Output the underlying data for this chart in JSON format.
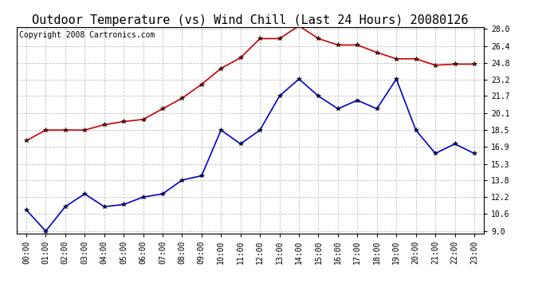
{
  "title": "Outdoor Temperature (vs) Wind Chill (Last 24 Hours) 20080126",
  "copyright_text": "Copyright 2008 Cartronics.com",
  "hours": [
    "00:00",
    "01:00",
    "02:00",
    "03:00",
    "04:00",
    "05:00",
    "06:00",
    "07:00",
    "08:00",
    "09:00",
    "10:00",
    "11:00",
    "12:00",
    "13:00",
    "14:00",
    "15:00",
    "16:00",
    "17:00",
    "18:00",
    "19:00",
    "20:00",
    "21:00",
    "22:00",
    "23:00"
  ],
  "temp_red": [
    17.5,
    18.5,
    18.5,
    18.5,
    19.0,
    19.3,
    19.5,
    20.5,
    21.5,
    22.8,
    24.3,
    25.3,
    27.1,
    27.1,
    28.3,
    27.1,
    26.5,
    26.5,
    25.8,
    25.2,
    25.2,
    24.6,
    24.7,
    24.7
  ],
  "wind_chill_blue": [
    11.0,
    9.0,
    11.3,
    12.5,
    11.3,
    11.5,
    12.2,
    12.5,
    13.8,
    14.2,
    18.5,
    17.2,
    18.5,
    21.7,
    23.3,
    21.7,
    20.5,
    21.3,
    20.5,
    23.3,
    18.5,
    16.3,
    17.2,
    16.3
  ],
  "ylim_min": 9.0,
  "ylim_max": 28.0,
  "yticks": [
    9.0,
    10.6,
    12.2,
    13.8,
    15.3,
    16.9,
    18.5,
    20.1,
    21.7,
    23.2,
    24.8,
    26.4,
    28.0
  ],
  "red_color": "#cc0000",
  "blue_color": "#0000cc",
  "grid_color": "#bbbbbb",
  "bg_color": "#ffffff",
  "title_fontsize": 11,
  "copyright_fontsize": 7,
  "tick_fontsize": 7,
  "marker": "*",
  "markersize": 4
}
